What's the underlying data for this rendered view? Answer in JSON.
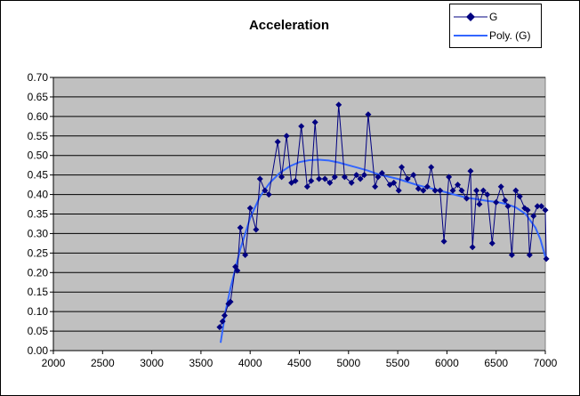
{
  "chart_data": {
    "type": "scatter",
    "title": "Acceleration",
    "xlabel": "",
    "ylabel": "",
    "xlim": [
      2000,
      7000
    ],
    "ylim": [
      0,
      0.7
    ],
    "x_ticks": [
      "2000",
      "2500",
      "3000",
      "3500",
      "4000",
      "4500",
      "5000",
      "5500",
      "6000",
      "6500",
      "7000"
    ],
    "y_ticks": [
      "0.00",
      "0.05",
      "0.10",
      "0.15",
      "0.20",
      "0.25",
      "0.30",
      "0.35",
      "0.40",
      "0.45",
      "0.50",
      "0.55",
      "0.60",
      "0.65",
      "0.70"
    ],
    "grid": true,
    "legend_position": "top-right",
    "plot_background": "#c0c0c0",
    "series": [
      {
        "name": "G",
        "color": "#000080",
        "marker": "diamond",
        "points": [
          [
            3690,
            0.06
          ],
          [
            3720,
            0.075
          ],
          [
            3740,
            0.09
          ],
          [
            3780,
            0.12
          ],
          [
            3800,
            0.125
          ],
          [
            3850,
            0.215
          ],
          [
            3870,
            0.205
          ],
          [
            3900,
            0.315
          ],
          [
            3950,
            0.245
          ],
          [
            4000,
            0.365
          ],
          [
            4060,
            0.31
          ],
          [
            4100,
            0.44
          ],
          [
            4150,
            0.41
          ],
          [
            4190,
            0.4
          ],
          [
            4280,
            0.535
          ],
          [
            4320,
            0.445
          ],
          [
            4370,
            0.55
          ],
          [
            4420,
            0.43
          ],
          [
            4460,
            0.435
          ],
          [
            4520,
            0.575
          ],
          [
            4580,
            0.42
          ],
          [
            4620,
            0.435
          ],
          [
            4660,
            0.585
          ],
          [
            4700,
            0.44
          ],
          [
            4760,
            0.44
          ],
          [
            4810,
            0.43
          ],
          [
            4860,
            0.445
          ],
          [
            4900,
            0.63
          ],
          [
            4960,
            0.445
          ],
          [
            5030,
            0.43
          ],
          [
            5080,
            0.45
          ],
          [
            5120,
            0.44
          ],
          [
            5160,
            0.45
          ],
          [
            5200,
            0.605
          ],
          [
            5270,
            0.42
          ],
          [
            5300,
            0.445
          ],
          [
            5340,
            0.455
          ],
          [
            5420,
            0.425
          ],
          [
            5460,
            0.43
          ],
          [
            5510,
            0.41
          ],
          [
            5540,
            0.47
          ],
          [
            5600,
            0.44
          ],
          [
            5660,
            0.45
          ],
          [
            5710,
            0.415
          ],
          [
            5760,
            0.41
          ],
          [
            5800,
            0.42
          ],
          [
            5840,
            0.47
          ],
          [
            5880,
            0.41
          ],
          [
            5930,
            0.41
          ],
          [
            5970,
            0.28
          ],
          [
            6020,
            0.445
          ],
          [
            6060,
            0.41
          ],
          [
            6110,
            0.425
          ],
          [
            6150,
            0.41
          ],
          [
            6200,
            0.39
          ],
          [
            6240,
            0.46
          ],
          [
            6260,
            0.265
          ],
          [
            6300,
            0.41
          ],
          [
            6330,
            0.375
          ],
          [
            6370,
            0.41
          ],
          [
            6410,
            0.4
          ],
          [
            6460,
            0.275
          ],
          [
            6500,
            0.38
          ],
          [
            6550,
            0.42
          ],
          [
            6590,
            0.385
          ],
          [
            6620,
            0.37
          ],
          [
            6660,
            0.245
          ],
          [
            6700,
            0.41
          ],
          [
            6740,
            0.395
          ],
          [
            6790,
            0.365
          ],
          [
            6820,
            0.36
          ],
          [
            6840,
            0.245
          ],
          [
            6880,
            0.345
          ],
          [
            6920,
            0.37
          ],
          [
            6960,
            0.37
          ],
          [
            7000,
            0.36
          ],
          [
            7010,
            0.235
          ]
        ]
      },
      {
        "name": "Poly. (G)",
        "color": "#3366ff",
        "marker": "none",
        "points": [
          [
            3700,
            0.02
          ],
          [
            3750,
            0.1
          ],
          [
            3800,
            0.16
          ],
          [
            3850,
            0.21
          ],
          [
            3900,
            0.26
          ],
          [
            3950,
            0.3
          ],
          [
            4000,
            0.34
          ],
          [
            4100,
            0.395
          ],
          [
            4200,
            0.43
          ],
          [
            4300,
            0.455
          ],
          [
            4400,
            0.472
          ],
          [
            4500,
            0.483
          ],
          [
            4600,
            0.488
          ],
          [
            4700,
            0.489
          ],
          [
            4800,
            0.487
          ],
          [
            4900,
            0.482
          ],
          [
            5000,
            0.475
          ],
          [
            5100,
            0.468
          ],
          [
            5200,
            0.461
          ],
          [
            5300,
            0.452
          ],
          [
            5400,
            0.446
          ],
          [
            5500,
            0.44
          ],
          [
            5600,
            0.432
          ],
          [
            5700,
            0.424
          ],
          [
            5800,
            0.418
          ],
          [
            5900,
            0.412
          ],
          [
            6000,
            0.405
          ],
          [
            6100,
            0.398
          ],
          [
            6200,
            0.392
          ],
          [
            6300,
            0.388
          ],
          [
            6400,
            0.384
          ],
          [
            6500,
            0.381
          ],
          [
            6600,
            0.376
          ],
          [
            6700,
            0.367
          ],
          [
            6800,
            0.35
          ],
          [
            6900,
            0.315
          ],
          [
            6950,
            0.285
          ],
          [
            7000,
            0.24
          ]
        ]
      }
    ]
  }
}
